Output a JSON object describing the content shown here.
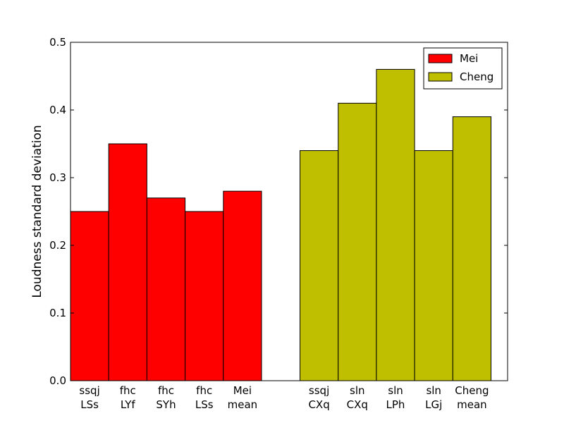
{
  "chart_data": {
    "type": "bar",
    "ylabel": "Loudness standard deviation",
    "xlabel": "",
    "ylim": [
      0,
      0.5
    ],
    "yticks": [
      "0.0",
      "0.1",
      "0.2",
      "0.3",
      "0.4",
      "0.5"
    ],
    "legend_position": "top-right",
    "series": [
      {
        "name": "Mei",
        "color": "#ff0000",
        "categories": [
          [
            "ssqj",
            "LSs"
          ],
          [
            "fhc",
            "LYf"
          ],
          [
            "fhc",
            "SYh"
          ],
          [
            "fhc",
            "LSs"
          ],
          [
            "Mei",
            "mean"
          ]
        ],
        "values": [
          0.25,
          0.35,
          0.27,
          0.25,
          0.28
        ]
      },
      {
        "name": "Cheng",
        "color": "#bfbf00",
        "categories": [
          [
            "ssqj",
            "CXq"
          ],
          [
            "sln",
            "CXq"
          ],
          [
            "sln",
            "LPh"
          ],
          [
            "sln",
            "LGj"
          ],
          [
            "Cheng",
            "mean"
          ]
        ],
        "values": [
          0.34,
          0.41,
          0.46,
          0.34,
          0.39
        ]
      }
    ]
  }
}
